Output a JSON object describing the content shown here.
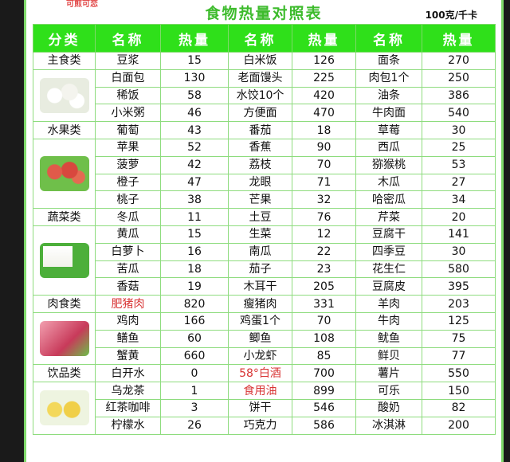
{
  "brand": "可煎可恋",
  "title": "食物热量对照表",
  "unit": "100克/千卡",
  "headers": [
    "分类",
    "名称",
    "热量",
    "名称",
    "热量",
    "名称",
    "热量"
  ],
  "colors": {
    "header_bg": "#2fe01a",
    "title": "#3dbb2c",
    "highlight": "#d83434",
    "grid": "#8edc7e"
  },
  "groups": [
    {
      "category": "主食类",
      "image": "steamed-buns",
      "rows": [
        [
          [
            "豆浆",
            "15"
          ],
          [
            "白米饭",
            "126"
          ],
          [
            "面条",
            "270"
          ]
        ],
        [
          [
            "白面包",
            "130"
          ],
          [
            "老面馒头",
            "225"
          ],
          [
            "肉包1个",
            "250"
          ]
        ],
        [
          [
            "稀饭",
            "58"
          ],
          [
            "水饺10个",
            "420"
          ],
          [
            "油条",
            "386"
          ]
        ],
        [
          [
            "小米粥",
            "46"
          ],
          [
            "方便面",
            "470"
          ],
          [
            "牛肉面",
            "540"
          ]
        ]
      ]
    },
    {
      "category": "水果类",
      "image": "apples",
      "rows": [
        [
          [
            "葡萄",
            "43"
          ],
          [
            "番茄",
            "18"
          ],
          [
            "草莓",
            "30"
          ]
        ],
        [
          [
            "苹果",
            "52"
          ],
          [
            "香蕉",
            "90"
          ],
          [
            "西瓜",
            "25"
          ]
        ],
        [
          [
            "菠萝",
            "42"
          ],
          [
            "荔枝",
            "70"
          ],
          [
            "猕猴桃",
            "53"
          ]
        ],
        [
          [
            "橙子",
            "47"
          ],
          [
            "龙眼",
            "71"
          ],
          [
            "木瓜",
            "27"
          ]
        ],
        [
          [
            "桃子",
            "38"
          ],
          [
            "芒果",
            "32"
          ],
          [
            "哈密瓜",
            "34"
          ]
        ]
      ]
    },
    {
      "category": "蔬菜类",
      "image": "tofu",
      "rows": [
        [
          [
            "冬瓜",
            "11"
          ],
          [
            "土豆",
            "76"
          ],
          [
            "芹菜",
            "20"
          ]
        ],
        [
          [
            "黄瓜",
            "15"
          ],
          [
            "生菜",
            "12"
          ],
          [
            "豆腐干",
            "141"
          ]
        ],
        [
          [
            "白萝卜",
            "16"
          ],
          [
            "南瓜",
            "22"
          ],
          [
            "四季豆",
            "30"
          ]
        ],
        [
          [
            "苦瓜",
            "18"
          ],
          [
            "茄子",
            "23"
          ],
          [
            "花生仁",
            "580"
          ]
        ],
        [
          [
            "香菇",
            "19"
          ],
          [
            "木耳干",
            "205"
          ],
          [
            "豆腐皮",
            "395"
          ]
        ]
      ]
    },
    {
      "category": "肉食类",
      "image": "raw-meat",
      "rows": [
        [
          [
            "肥猪肉",
            "820",
            true
          ],
          [
            "瘦猪肉",
            "331"
          ],
          [
            "羊肉",
            "203"
          ]
        ],
        [
          [
            "鸡肉",
            "166"
          ],
          [
            "鸡蛋1个",
            "70"
          ],
          [
            "牛肉",
            "125"
          ]
        ],
        [
          [
            "鳝鱼",
            "60"
          ],
          [
            "鲫鱼",
            "108"
          ],
          [
            "鱿鱼",
            "75"
          ]
        ],
        [
          [
            "蟹黄",
            "660"
          ],
          [
            "小龙虾",
            "85"
          ],
          [
            "鲜贝",
            "77"
          ]
        ]
      ]
    },
    {
      "category": "饮品类",
      "image": "lemon-slices",
      "rows": [
        [
          [
            "白开水",
            "0"
          ],
          [
            "58°白酒",
            "700",
            true
          ],
          [
            "薯片",
            "550"
          ]
        ],
        [
          [
            "乌龙茶",
            "1"
          ],
          [
            "食用油",
            "899",
            true
          ],
          [
            "可乐",
            "150"
          ]
        ],
        [
          [
            "红茶咖啡",
            "3"
          ],
          [
            "饼干",
            "546"
          ],
          [
            "酸奶",
            "82"
          ]
        ],
        [
          [
            "柠檬水",
            "26"
          ],
          [
            "巧克力",
            "586"
          ],
          [
            "冰淇淋",
            "200"
          ]
        ]
      ]
    }
  ]
}
